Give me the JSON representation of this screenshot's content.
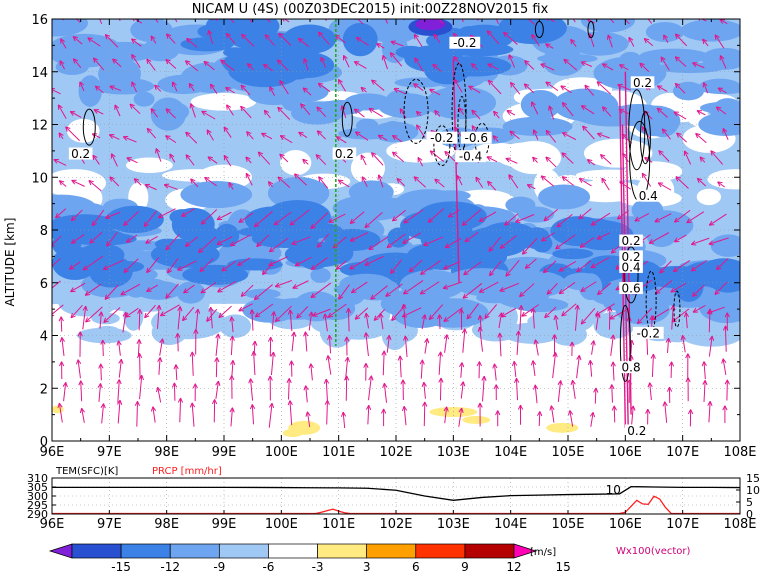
{
  "chart_data": [
    {
      "type": "heatmap",
      "title": "NICAM U (4S) (00Z03DEC2015) init:00Z28NOV2015 fix",
      "xlabel": "",
      "ylabel": "ALTITUDE [km]",
      "x_ticks": [
        "96E",
        "97E",
        "98E",
        "99E",
        "100E",
        "101E",
        "102E",
        "103E",
        "104E",
        "105E",
        "106E",
        "107E",
        "108E"
      ],
      "y_ticks": [
        "0",
        "2",
        "4",
        "6",
        "8",
        "10",
        "12",
        "14",
        "16"
      ],
      "xlim": [
        96,
        108
      ],
      "ylim": [
        0,
        16
      ],
      "grid": true,
      "color_field_units": "m/s",
      "marker_line_lon": 100.95,
      "contour_labels": [
        {
          "text": "0.2",
          "lon": 96.5,
          "alt": 10.9
        },
        {
          "text": "0.2",
          "lon": 101.1,
          "alt": 10.9
        },
        {
          "text": "-0.2",
          "lon": 103.2,
          "alt": 15.1
        },
        {
          "text": "-0.2",
          "lon": 102.8,
          "alt": 11.5
        },
        {
          "text": "-0.6",
          "lon": 103.4,
          "alt": 11.5
        },
        {
          "text": "-0.4",
          "lon": 103.3,
          "alt": 10.8
        },
        {
          "text": "0.2",
          "lon": 106.3,
          "alt": 13.6
        },
        {
          "text": "0.4",
          "lon": 106.4,
          "alt": 9.3
        },
        {
          "text": "0.2",
          "lon": 106.1,
          "alt": 7.6
        },
        {
          "text": "0.2",
          "lon": 106.1,
          "alt": 7.0
        },
        {
          "text": "0.4",
          "lon": 106.1,
          "alt": 6.6
        },
        {
          "text": "0.6",
          "lon": 106.1,
          "alt": 5.8
        },
        {
          "text": "-0.2",
          "lon": 106.4,
          "alt": 4.1
        },
        {
          "text": "0.8",
          "lon": 106.1,
          "alt": 2.8
        },
        {
          "text": "0.2",
          "lon": 106.2,
          "alt": 0.4
        }
      ]
    },
    {
      "type": "line",
      "legend": [
        {
          "label": "TEM(SFC)[K]",
          "color": "#000000"
        },
        {
          "label": "PRCP [mm/hr]",
          "color": "#ff2020"
        }
      ],
      "left_ticks": [
        "310",
        "305",
        "300",
        "295",
        "290"
      ],
      "right_ticks": [
        "15",
        "10",
        "5",
        "0"
      ],
      "x_ticks": [
        "96E",
        "97E",
        "98E",
        "99E",
        "100E",
        "101E",
        "102E",
        "103E",
        "104E",
        "105E",
        "106E",
        "107E",
        "108E"
      ],
      "xlim": [
        96,
        108
      ],
      "left_ylim": [
        290,
        310
      ],
      "right_ylim": [
        0,
        15
      ],
      "annotation": {
        "text": "10",
        "lon": 105.9,
        "value": 10
      },
      "series": [
        {
          "key": "tem",
          "x": [
            96,
            97,
            98,
            99,
            100,
            100.5,
            101,
            101.5,
            102,
            102.5,
            103,
            103.5,
            104,
            104.5,
            105,
            105.5,
            105.9,
            106.1,
            106.5,
            107,
            107.5,
            108
          ],
          "values": [
            304.8,
            304.8,
            304.8,
            304.8,
            304.7,
            304.6,
            304.5,
            304.3,
            303.2,
            300.0,
            297.6,
            299.2,
            300.2,
            300.5,
            300.8,
            301.0,
            301.2,
            305.2,
            305.0,
            304.8,
            304.8,
            304.7
          ]
        },
        {
          "key": "prcp",
          "x": [
            96,
            100.6,
            100.7,
            100.8,
            100.9,
            101.0,
            101.1,
            101.2,
            105.9,
            106.0,
            106.1,
            106.2,
            106.3,
            106.4,
            106.5,
            106.6,
            106.7,
            106.8,
            108
          ],
          "values": [
            0,
            0,
            0.5,
            1.2,
            1.8,
            1.0,
            0.3,
            0,
            0,
            0.5,
            3.0,
            5.5,
            4.0,
            3.8,
            7.2,
            6.0,
            2.5,
            0,
            0
          ]
        }
      ]
    },
    {
      "type": "colorbar",
      "tick_labels": [
        "-15",
        "-12",
        "-9",
        "-6",
        "-3",
        "3",
        "6",
        "9",
        "12",
        "15"
      ],
      "colors": [
        "#8020d8",
        "#2850d0",
        "#3c82e6",
        "#6ea5f0",
        "#a0c8f5",
        "#ffffff",
        "#ffeb82",
        "#ffa000",
        "#ff3200",
        "#b40000",
        "#ff00b4"
      ],
      "units": "[m/s]",
      "vector_label": "Wx100(vector)"
    }
  ]
}
